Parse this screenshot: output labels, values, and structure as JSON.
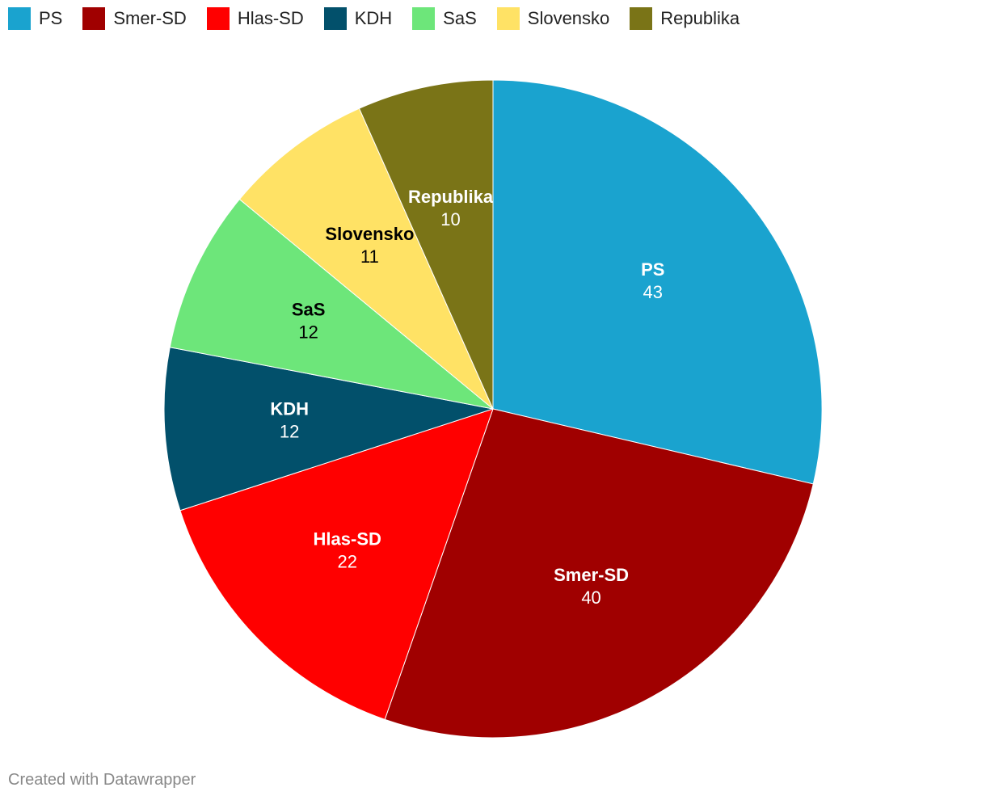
{
  "chart_data": {
    "type": "pie",
    "categories": [
      "PS",
      "Smer-SD",
      "Hlas-SD",
      "KDH",
      "SaS",
      "Slovensko",
      "Republika"
    ],
    "values": [
      43,
      40,
      22,
      12,
      12,
      11,
      10
    ],
    "colors": [
      "#1aa3cf",
      "#a00000",
      "#ff0000",
      "#02506b",
      "#6de67a",
      "#ffe265",
      "#7a7417"
    ],
    "legend": "top-left",
    "footer": "Created with Datawrapper"
  }
}
